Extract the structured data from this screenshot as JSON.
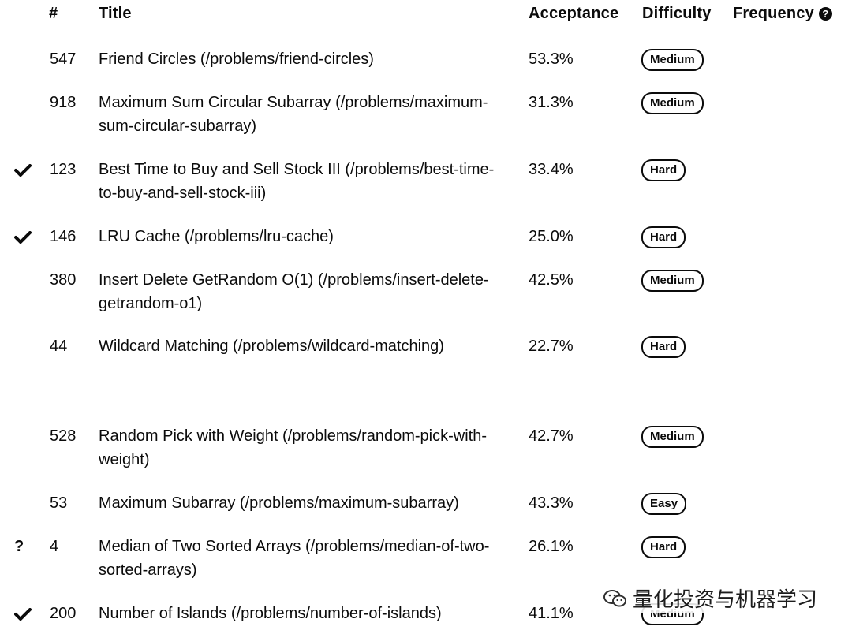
{
  "header": {
    "num": "#",
    "title": "Title",
    "acceptance": "Acceptance",
    "difficulty": "Difficulty",
    "frequency": "Frequency",
    "help_glyph": "?"
  },
  "rows": [
    {
      "status": "",
      "num": "547",
      "title": "Friend Circles (/problems/friend-circles)",
      "acceptance": "53.3%",
      "difficulty": "Medium"
    },
    {
      "status": "",
      "num": "918",
      "title": "Maximum Sum Circular Subarray (/problems/maximum-sum-circular-subarray)",
      "acceptance": "31.3%",
      "difficulty": "Medium"
    },
    {
      "status": "check",
      "num": "123",
      "title": "Best Time to Buy and Sell Stock III (/problems/best-time-to-buy-and-sell-stock-iii)",
      "acceptance": "33.4%",
      "difficulty": "Hard"
    },
    {
      "status": "check",
      "num": "146",
      "title": "LRU Cache (/problems/lru-cache)",
      "acceptance": "25.0%",
      "difficulty": "Hard"
    },
    {
      "status": "",
      "num": "380",
      "title": "Insert Delete GetRandom O(1) (/problems/insert-delete-getrandom-o1)",
      "acceptance": "42.5%",
      "difficulty": "Medium"
    },
    {
      "status": "",
      "num": "44",
      "title": "Wildcard Matching (/problems/wildcard-matching)",
      "acceptance": "22.7%",
      "difficulty": "Hard"
    },
    {
      "status": "",
      "num": "528",
      "title": "Random Pick with Weight (/problems/random-pick-with-weight)",
      "acceptance": "42.7%",
      "difficulty": "Medium"
    },
    {
      "status": "",
      "num": "53",
      "title": "Maximum Subarray (/problems/maximum-subarray)",
      "acceptance": "43.3%",
      "difficulty": "Easy"
    },
    {
      "status": "?",
      "num": "4",
      "title": "Median of Two Sorted Arrays (/problems/median-of-two-sorted-arrays)",
      "acceptance": "26.1%",
      "difficulty": "Hard"
    },
    {
      "status": "check",
      "num": "200",
      "title": "Number of Islands (/problems/number-of-islands)",
      "acceptance": "41.1%",
      "difficulty": "Medium"
    }
  ],
  "watermark": {
    "text": "量化投资与机器学习",
    "icon": "wechat-icon"
  }
}
